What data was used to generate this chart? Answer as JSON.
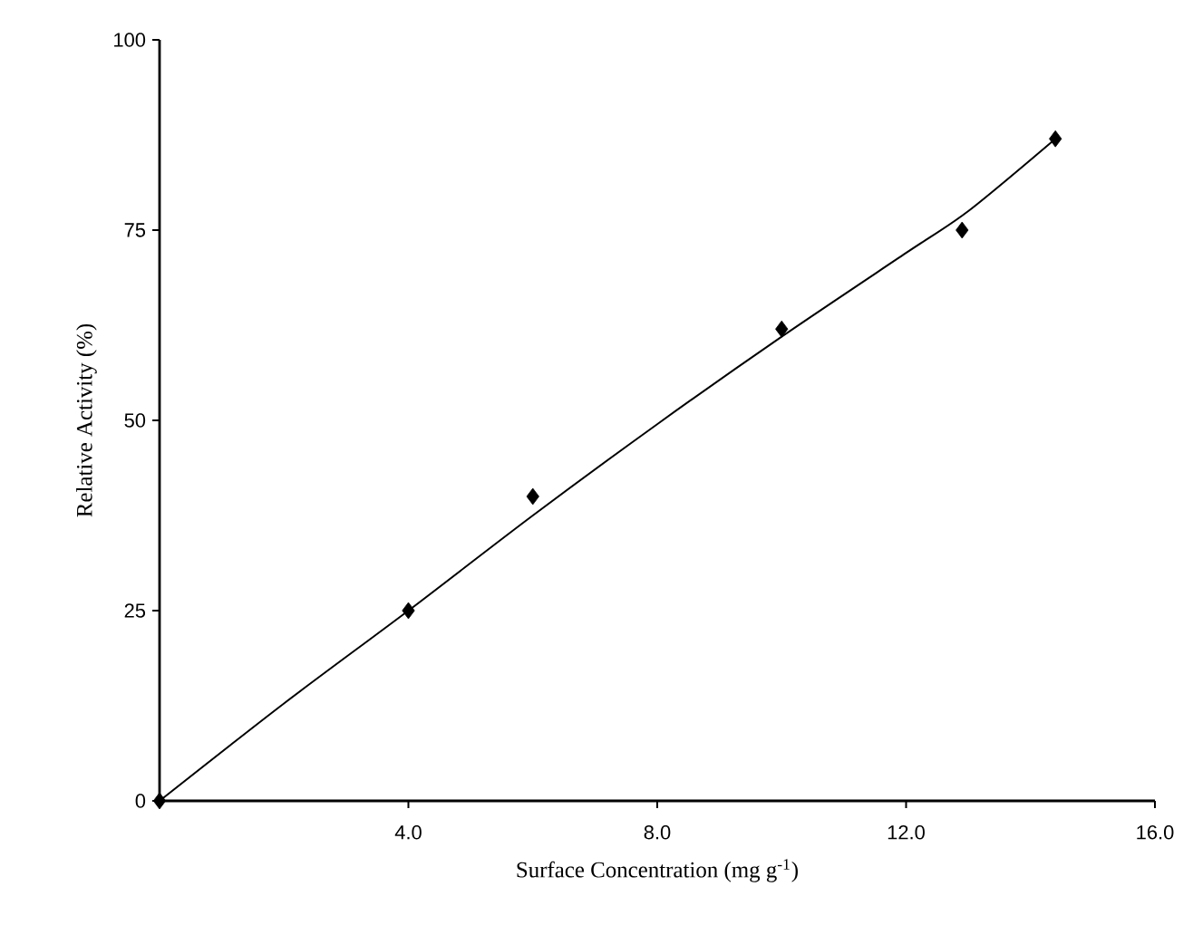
{
  "chart_data": {
    "type": "scatter",
    "xlabel": "Surface Concentration (mg g$^{-1}$)",
    "ylabel": "Relative Activity (%)",
    "xlim": [
      0,
      16
    ],
    "ylim": [
      0,
      100
    ],
    "xticks": [
      {
        "value": 4,
        "label": "4.0"
      },
      {
        "value": 8,
        "label": "8.0"
      },
      {
        "value": 12,
        "label": "12.0"
      },
      {
        "value": 16,
        "label": "16.0"
      }
    ],
    "yticks": [
      0,
      25,
      50,
      75,
      100
    ],
    "grid": false,
    "marker": "diamond",
    "series": [
      {
        "color": "#000000",
        "x": [
          0,
          4.0,
          6.0,
          10.0,
          12.9,
          14.4
        ],
        "values": [
          0,
          25,
          40,
          62,
          75,
          87
        ]
      },
      {
        "type": "line",
        "color": "#000000",
        "marker": "none",
        "line_style": "solid",
        "x": [
          0,
          2,
          4,
          6,
          8,
          10,
          12,
          13,
          14.4
        ],
        "values": [
          0,
          12.8,
          25,
          37.5,
          49.5,
          61,
          72,
          77.5,
          87
        ]
      }
    ]
  }
}
